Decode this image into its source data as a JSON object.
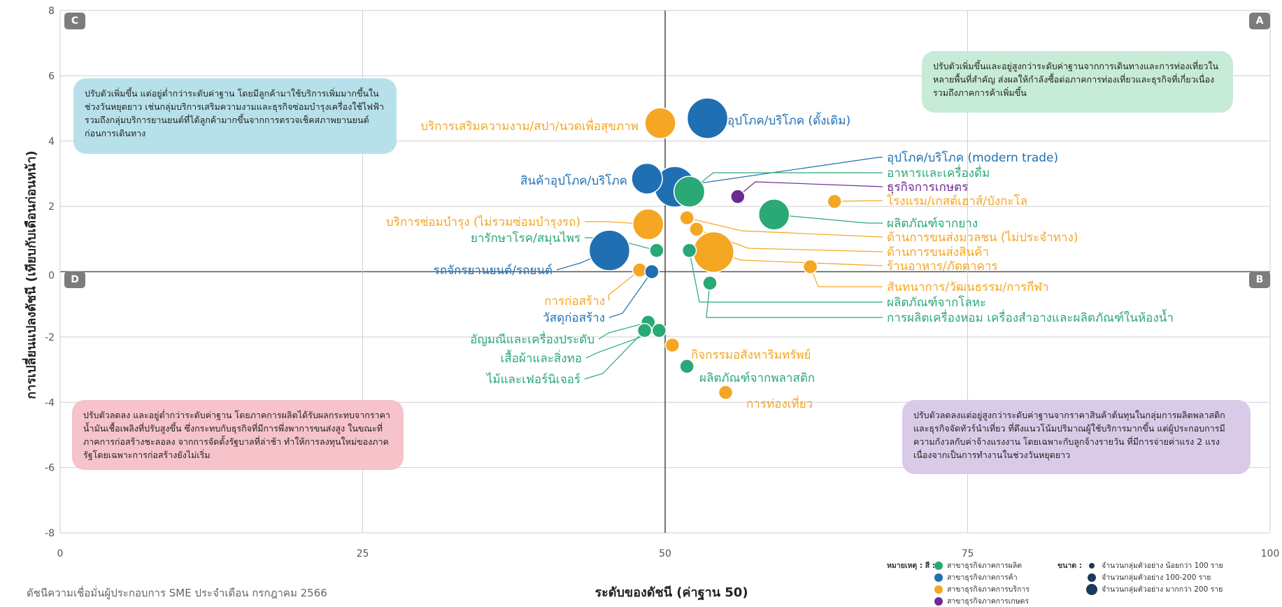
{
  "chart_data": {
    "type": "scatter",
    "xlabel": "ระดับของดัชนี (ค่าฐาน 50)",
    "ylabel": "การเปลี่ยนแปลงดัชนี (เทียบกับเดือนก่อนหน้า)",
    "xlim": [
      0,
      100
    ],
    "ylim": [
      -8,
      8
    ],
    "xticks": [
      0,
      25,
      50,
      75,
      100
    ],
    "yticks": [
      -8,
      -6,
      -4,
      -2,
      0,
      2,
      4,
      6,
      8
    ],
    "grid": true,
    "colors": {
      "production": "#2aa876",
      "trade": "#1f6fb2",
      "service": "#f5a623",
      "agriculture": "#6a2c91",
      "navy": "#1b3a5c"
    },
    "points": [
      {
        "label": "อุปโภค/บริโภค (ดั้งเดิม)",
        "x": 53.5,
        "y": 4.7,
        "group": "trade",
        "size": "large"
      },
      {
        "label": "บริการเสริมความงาม/สปา/นวดเพื่อสุขภาพ",
        "x": 49.6,
        "y": 4.55,
        "group": "service",
        "size": "medium"
      },
      {
        "label": "อุปโภค/บริโภค (modern trade)",
        "x": 50.8,
        "y": 2.6,
        "group": "trade",
        "size": "large"
      },
      {
        "label": "สินค้าอุปโภค/บริโภค",
        "x": 48.5,
        "y": 2.85,
        "group": "trade",
        "size": "medium"
      },
      {
        "label": "อาหารและเครื่องดื่ม",
        "x": 52.0,
        "y": 2.45,
        "group": "production",
        "size": "medium"
      },
      {
        "label": "ธุรกิจการเกษตร",
        "x": 56.0,
        "y": 2.3,
        "group": "agriculture",
        "size": "small"
      },
      {
        "label": "โรงแรม/เกสต์เฮาส์/บังกะโล",
        "x": 64.0,
        "y": 2.15,
        "group": "service",
        "size": "small"
      },
      {
        "label": "บริการซ่อมบำรุง (ไม่รวมซ่อมบำรุงรถ)",
        "x": 48.6,
        "y": 1.45,
        "group": "service",
        "size": "medium"
      },
      {
        "label": "ผลิตภัณฑ์จากยาง",
        "x": 59.0,
        "y": 1.75,
        "group": "production",
        "size": "medium"
      },
      {
        "label": "ด้านการขนส่งมวลชน (ไม่ประจำทาง)",
        "x": 51.8,
        "y": 1.65,
        "group": "service",
        "size": "small"
      },
      {
        "label": "ด้านการขนส่งสินค้า",
        "x": 52.6,
        "y": 1.3,
        "group": "service",
        "size": "small"
      },
      {
        "label": "ยารักษาโรค/สมุนไพร",
        "x": 49.3,
        "y": 0.65,
        "group": "production",
        "size": "small"
      },
      {
        "label": "ร้านอาหาร/ภัตตาคาร",
        "x": 54.0,
        "y": 0.6,
        "group": "service",
        "size": "large"
      },
      {
        "label": "รถจักรยานยนต์/รถยนต์",
        "x": 45.4,
        "y": 0.65,
        "group": "trade",
        "size": "large"
      },
      {
        "label": "ผลิตภัณฑ์จากโลหะ",
        "x": 52.0,
        "y": 0.65,
        "group": "production",
        "size": "small"
      },
      {
        "label": "สันทนาการ/วัฒนธรรม/การกีฬา",
        "x": 62.0,
        "y": 0.15,
        "group": "service",
        "size": "small"
      },
      {
        "label": "การก่อสร้าง",
        "x": 47.9,
        "y": 0.05,
        "group": "service",
        "size": "small"
      },
      {
        "label": "วัสดุก่อสร้าง",
        "x": 48.9,
        "y": 0.0,
        "group": "trade",
        "size": "small"
      },
      {
        "label": "การผลิตเครื่องหอม เครื่องสำอางและผลิตภัณฑ์ในห้องน้ำ",
        "x": 53.7,
        "y": -0.35,
        "group": "production",
        "size": "small"
      },
      {
        "label": "อัญมณีและเครื่องประดับ",
        "x": 48.6,
        "y": -1.55,
        "group": "production",
        "size": "small"
      },
      {
        "label": "เสื้อผ้าและสิ่งทอ",
        "x": 49.5,
        "y": -1.8,
        "group": "production",
        "size": "small"
      },
      {
        "label": "ไม้และเฟอร์นิเจอร์",
        "x": 48.3,
        "y": -1.8,
        "group": "production",
        "size": "small"
      },
      {
        "label": "กิจกรรมอสังหาริมทรัพย์",
        "x": 50.6,
        "y": -2.25,
        "group": "service",
        "size": "small"
      },
      {
        "label": "ผลิตภัณฑ์จากพลาสติก",
        "x": 51.8,
        "y": -2.9,
        "group": "production",
        "size": "small"
      },
      {
        "label": "การท่องเที่ยว",
        "x": 55.0,
        "y": -3.7,
        "group": "service",
        "size": "small"
      }
    ],
    "quadrants": {
      "A": "A",
      "B": "B",
      "C": "C",
      "D": "D"
    }
  },
  "notes": {
    "c": "ปรับตัวเพิ่มขึ้น แต่อยู่ต่ำกว่าระดับค่าฐาน โดยมีลูกค้ามาใช้บริการเพิ่มมากขึ้นในช่วงวันหยุดยาว เช่นกลุ่มบริการเสริมความงามและธุรกิจซ่อมบำรุงเครื่องใช้ไฟฟ้า รวมถึงกลุ่มบริการยานยนต์ที่ได้ลูกค้ามากขึ้นจากการตรวจเช็คสภาพยานยนต์ก่อนการเดินทาง",
    "a": "ปรับตัวเพิ่มขึ้นและอยู่สูงกว่าระดับค่าฐานจากการเดินทางและการท่องเที่ยวในหลายพื้นที่สำคัญ ส่งผลให้กำลังซื้อต่อภาคการท่องเที่ยวและธุรกิจที่เกี่ยวเนื่อง รวมถึงภาคการค้าเพิ่มขึ้น",
    "d": "ปรับตัวลดลง และอยู่ต่ำกว่าระดับค่าฐาน โดยภาคการผลิตได้รับผลกระทบจากราคาน้ำมันเชื้อเพลิงที่ปรับสูงขึ้น ซึ่งกระทบกับธุรกิจที่มีการพึ่งพาการขนส่งสูง ในขณะที่ภาคการก่อสร้างชะลอลง จากการจัดตั้งรัฐบาลที่ล่าช้า ทำให้การลงทุนใหม่ของภาครัฐโดยเฉพาะการก่อสร้างยังไม่เริ่ม",
    "b": "ปรับตัวลดลงแต่อยู่สูงกว่าระดับค่าฐานจากราคาสินค้าต้นทุนในกลุ่มการผลิตพลาสติก และธุรกิจจัดทัวร์นำเที่ยว ที่ดึงแนวโน้มปริมาณผู้ใช้บริการมากขึ้น แต่ผู้ประกอบการมีความกังวลกับค่าจ้างแรงงาน โดยเฉพาะกับลูกจ้างรายวัน ที่มีการจ่ายค่าแรง 2 แรง เนื่องจากเป็นการทำงานในช่วงวันหยุดยาว"
  },
  "legend": {
    "color_title": "หมายเหตุ : สี :",
    "colors": [
      {
        "label": "สาขาธุรกิจภาคการผลิต",
        "color": "#2aa876"
      },
      {
        "label": "สาขาธุรกิจภาคการค้า",
        "color": "#1f6fb2"
      },
      {
        "label": "สาขาธุรกิจภาคการบริการ",
        "color": "#f5a623"
      },
      {
        "label": "สาขาธุรกิจภาคการเกษตร",
        "color": "#6a2c91"
      }
    ],
    "size_title": "ขนาด :",
    "sizes": [
      {
        "label": "จำนวนกลุ่มตัวอย่าง น้อยกว่า 100 ราย"
      },
      {
        "label": "จำนวนกลุ่มตัวอย่าง 100-200 ราย"
      },
      {
        "label": "จำนวนกลุ่มตัวอย่าง มากกว่า 200 ราย"
      }
    ]
  },
  "footnote": "ดัชนีความเชื่อมั่นผู้ประกอบการ SME ประจำเดือน กรกฎาคม 2566"
}
